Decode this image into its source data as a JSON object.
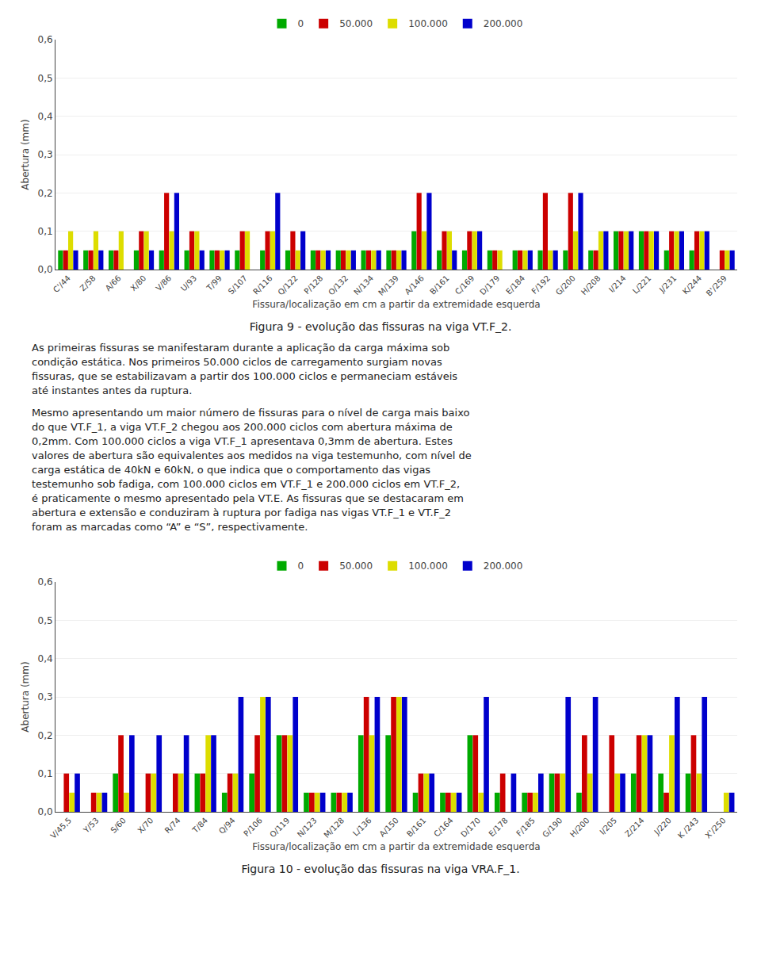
{
  "chart_data": [
    {
      "type": "bar",
      "title": "Figura 9 - evolução das fissuras na viga VT.F_2.",
      "xlabel": "Fissura/localização em cm a partir da extremidade esquerda",
      "ylabel": "Abertura (mm)",
      "categories": [
        "C'/44",
        "Z/58",
        "A/66",
        "X/80",
        "V/86",
        "U/93",
        "T/99",
        "S/107",
        "R/116",
        "Q/122",
        "P/128",
        "O/132",
        "N/134",
        "M/139",
        "A/146",
        "B/161",
        "C/169",
        "D/179",
        "E/184",
        "F/192",
        "G/200",
        "H/208",
        "I/214",
        "L/221",
        "J/231",
        "K/244",
        "B'/259"
      ],
      "series": [
        {
          "name": "0",
          "color": "#00aa00",
          "values": [
            0.05,
            0.05,
            0.05,
            0.05,
            0.05,
            0.05,
            0.05,
            0.05,
            0.05,
            0.05,
            0.05,
            0.05,
            0.05,
            0.05,
            0.1,
            0.05,
            0.05,
            0.05,
            0.05,
            0.05,
            0.05,
            0.05,
            0.1,
            0.1,
            0.05,
            0.05,
            0.0
          ]
        },
        {
          "name": "50.000",
          "color": "#cc0000",
          "values": [
            0.05,
            0.05,
            0.05,
            0.1,
            0.2,
            0.1,
            0.05,
            0.1,
            0.1,
            0.1,
            0.05,
            0.05,
            0.05,
            0.05,
            0.2,
            0.1,
            0.1,
            0.05,
            0.05,
            0.2,
            0.2,
            0.05,
            0.1,
            0.1,
            0.1,
            0.1,
            0.05
          ]
        },
        {
          "name": "100.000",
          "color": "#dddd00",
          "values": [
            0.1,
            0.1,
            0.1,
            0.1,
            0.1,
            0.1,
            0.05,
            0.1,
            0.1,
            0.05,
            0.05,
            0.05,
            0.05,
            0.05,
            0.1,
            0.1,
            0.1,
            0.05,
            0.05,
            0.05,
            0.1,
            0.1,
            0.1,
            0.1,
            0.1,
            0.1,
            0.05
          ]
        },
        {
          "name": "200.000",
          "color": "#0000cc",
          "values": [
            0.05,
            0.05,
            0.0,
            0.05,
            0.2,
            0.05,
            0.05,
            0.0,
            0.2,
            0.1,
            0.05,
            0.05,
            0.05,
            0.05,
            0.2,
            0.05,
            0.1,
            0.0,
            0.05,
            0.05,
            0.2,
            0.1,
            0.1,
            0.1,
            0.1,
            0.1,
            0.05
          ]
        }
      ],
      "ylim": [
        0,
        0.6
      ],
      "yticks": [
        {
          "value": 0,
          "label": "0,0"
        },
        {
          "value": 0.1,
          "label": "0,1"
        },
        {
          "value": 0.2,
          "label": "0,2"
        },
        {
          "value": 0.3,
          "label": "0,3"
        },
        {
          "value": 0.4,
          "label": "0,4"
        },
        {
          "value": 0.5,
          "label": "0,5"
        },
        {
          "value": 0.6,
          "label": "0,6"
        }
      ],
      "grid": true,
      "legend": "top",
      "annotations": [
        "As primeiras fissuras se manifestaram durante a aplicação da carga máxima sob\ncondição estática. Nos primeiros 50.000 ciclos de carregamento surgiam novas\nfissuras, que se estabilizavam a partir dos 100.000 ciclos e permaneciam estáveis\naté instantes antes da ruptura.",
        "Mesmo apresentando um maior número de fissuras para o nível de carga mais baixo\ndo que VT.F_1, a viga VT.F_2 chegou aos 200.000 ciclos com abertura máxima de\n0,2mm. Com 100.000 ciclos a viga VT.F_1 apresentava 0,3mm de abertura. Estes\nvalores de abertura são equivalentes aos medidos na viga testemunho, com nível de\ncarga estática de 40kN e 60kN, o que indica que o comportamento das vigas\ntestemunho sob fadiga, com 100.000 ciclos em VT.F_1 e 200.000 ciclos em VT.F_2,\né praticamente o mesmo apresentado pela VT.E. As fissuras que se destacaram em\nabertura e extensão e conduziram à ruptura por fadiga nas vigas VT.F_1 e VT.F_2\nforam as marcadas como “A” e “S”, respectivamente."
      ]
    },
    {
      "type": "bar",
      "title": "Figura 10 - evolução das fissuras na viga VRA.F_1.",
      "xlabel": "Fissura/localização em cm a partir da extremidade esquerda",
      "ylabel": "Abertura (mm)",
      "categories": [
        "V/45,5",
        "Y/53",
        "S/60",
        "X/70",
        "R/74",
        "T/84",
        "Q/94",
        "P/106",
        "O/119",
        "N/123",
        "M/128",
        "L/136",
        "A/150",
        "B/161",
        "C/164",
        "D/170",
        "E/178",
        "F/185",
        "G/190",
        "H/200",
        "I/205",
        "Z/214",
        "J/220",
        "K /243",
        "X'/250"
      ],
      "series": [
        {
          "name": "0",
          "color": "#00aa00",
          "values": [
            0.0,
            0.0,
            0.1,
            0.0,
            0.0,
            0.1,
            0.05,
            0.1,
            0.2,
            0.05,
            0.05,
            0.2,
            0.2,
            0.05,
            0.05,
            0.2,
            0.05,
            0.05,
            0.1,
            0.05,
            0.0,
            0.1,
            0.1,
            0.1,
            0.0
          ]
        },
        {
          "name": "50.000",
          "color": "#cc0000",
          "values": [
            0.1,
            0.05,
            0.2,
            0.1,
            0.1,
            0.1,
            0.1,
            0.2,
            0.2,
            0.05,
            0.05,
            0.3,
            0.3,
            0.1,
            0.05,
            0.2,
            0.1,
            0.05,
            0.1,
            0.2,
            0.2,
            0.2,
            0.05,
            0.2,
            0.0
          ]
        },
        {
          "name": "100.000",
          "color": "#dddd00",
          "values": [
            0.05,
            0.05,
            0.05,
            0.1,
            0.1,
            0.2,
            0.1,
            0.3,
            0.2,
            0.05,
            0.05,
            0.2,
            0.3,
            0.1,
            0.05,
            0.05,
            0.0,
            0.05,
            0.1,
            0.1,
            0.1,
            0.2,
            0.2,
            0.1,
            0.05
          ]
        },
        {
          "name": "200.000",
          "color": "#0000cc",
          "values": [
            0.1,
            0.05,
            0.2,
            0.2,
            0.2,
            0.2,
            0.3,
            0.3,
            0.3,
            0.05,
            0.05,
            0.3,
            0.3,
            0.1,
            0.05,
            0.3,
            0.1,
            0.1,
            0.3,
            0.3,
            0.1,
            0.2,
            0.3,
            0.3,
            0.05
          ]
        }
      ],
      "ylim": [
        0,
        0.6
      ],
      "yticks": [
        {
          "value": 0,
          "label": "0,0"
        },
        {
          "value": 0.1,
          "label": "0,1"
        },
        {
          "value": 0.2,
          "label": "0,2"
        },
        {
          "value": 0.3,
          "label": "0,3"
        },
        {
          "value": 0.4,
          "label": "0,4"
        },
        {
          "value": 0.5,
          "label": "0,5"
        },
        {
          "value": 0.6,
          "label": "0,6"
        }
      ],
      "grid": true,
      "legend": "top"
    }
  ]
}
